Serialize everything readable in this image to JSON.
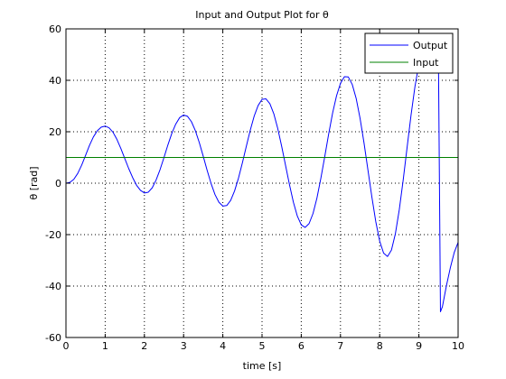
{
  "chart_data": {
    "type": "line",
    "title": "Input and Output Plot for θ",
    "xlabel": "time [s]",
    "ylabel": "θ [rad]",
    "xlim": [
      0,
      10
    ],
    "ylim": [
      -60,
      60
    ],
    "xticks": [
      0,
      1,
      2,
      3,
      4,
      5,
      6,
      7,
      8,
      9,
      10
    ],
    "yticks": [
      -60,
      -40,
      -20,
      0,
      20,
      40,
      60
    ],
    "grid": true,
    "legend_position": "top-right",
    "series": [
      {
        "name": "Output",
        "color": "#0000ff",
        "x": [
          0,
          0.1,
          0.2,
          0.3,
          0.4,
          0.5,
          0.6,
          0.7,
          0.8,
          0.9,
          1.0,
          1.1,
          1.2,
          1.3,
          1.4,
          1.5,
          1.6,
          1.7,
          1.8,
          1.9,
          2.0,
          2.1,
          2.2,
          2.3,
          2.4,
          2.5,
          2.6,
          2.7,
          2.8,
          2.9,
          3.0,
          3.1,
          3.2,
          3.3,
          3.4,
          3.5,
          3.6,
          3.7,
          3.8,
          3.9,
          4.0,
          4.1,
          4.2,
          4.3,
          4.4,
          4.5,
          4.6,
          4.7,
          4.8,
          4.9,
          5.0,
          5.1,
          5.2,
          5.3,
          5.4,
          5.5,
          5.6,
          5.7,
          5.8,
          5.9,
          6.0,
          6.1,
          6.2,
          6.3,
          6.4,
          6.5,
          6.6,
          6.7,
          6.8,
          6.9,
          7.0,
          7.1,
          7.2,
          7.3,
          7.4,
          7.5,
          7.6,
          7.7,
          7.8,
          7.9,
          8.0,
          8.1,
          8.2,
          8.3,
          8.4,
          8.5,
          8.6,
          8.7,
          8.8,
          8.9,
          9.0,
          9.1,
          9.2,
          9.3,
          9.4,
          9.5,
          9.55,
          9.6,
          9.7,
          9.8,
          9.9,
          10.0
        ],
        "y": [
          0,
          0.3,
          1.5,
          3.8,
          7.0,
          10.8,
          14.7,
          18.0,
          20.4,
          21.8,
          22.2,
          21.5,
          19.8,
          17.0,
          13.5,
          9.6,
          5.7,
          2.2,
          -0.8,
          -2.8,
          -3.8,
          -3.5,
          -1.8,
          1.3,
          5.3,
          10.0,
          14.9,
          19.4,
          23.0,
          25.5,
          26.5,
          26.0,
          23.9,
          20.4,
          15.8,
          10.5,
          5.0,
          -0.1,
          -4.4,
          -7.4,
          -8.9,
          -8.7,
          -6.7,
          -3.0,
          2.0,
          8.0,
          14.4,
          20.6,
          26.1,
          30.2,
          32.6,
          32.8,
          30.9,
          27.0,
          21.3,
          14.4,
          6.9,
          -0.6,
          -7.4,
          -12.8,
          -16.2,
          -17.2,
          -15.7,
          -11.8,
          -5.8,
          1.9,
          10.4,
          19.2,
          27.3,
          34.0,
          38.8,
          41.4,
          41.3,
          38.4,
          33.0,
          25.2,
          15.7,
          5.2,
          -5.3,
          -14.9,
          -22.5,
          -27.2,
          -28.5,
          -26.0,
          -19.7,
          -10.3,
          1.3,
          14.0,
          26.5,
          37.6,
          46.3,
          51.6,
          53.0,
          50.1,
          48.0,
          46.0,
          -50.0,
          -48.0,
          -40.0,
          -33.0,
          -27.0,
          -23.0
        ]
      },
      {
        "name": "Input",
        "color": "#008000",
        "x": [
          0,
          10
        ],
        "y": [
          10,
          10
        ]
      }
    ]
  }
}
